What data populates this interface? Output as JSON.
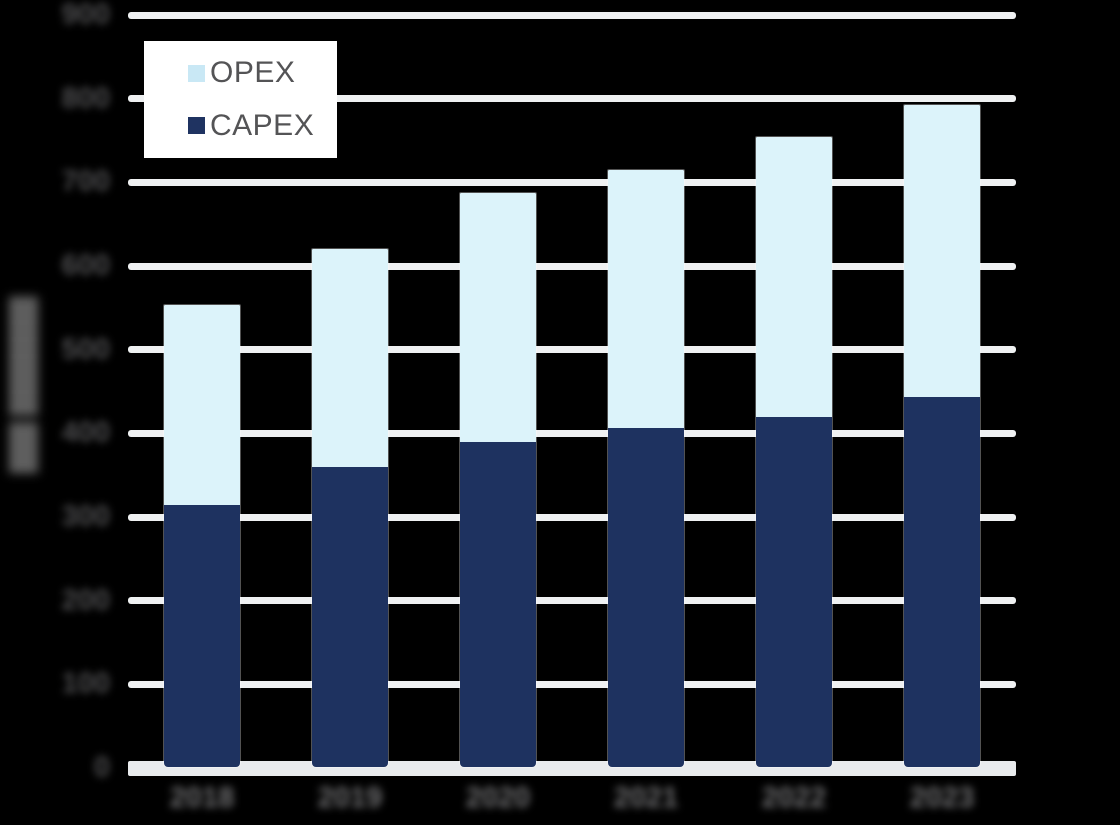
{
  "legend": {
    "items": [
      {
        "label": "OPEX",
        "swatch_color": "#c9e8f5",
        "icon": "square-swatch-icon"
      },
      {
        "label": "CAPEX",
        "swatch_color": "#1f3361",
        "icon": "square-swatch-icon"
      }
    ],
    "text_color": "#545456",
    "background": "#ffffff",
    "position": "top-left"
  },
  "chart_data": {
    "type": "bar",
    "stacked": true,
    "title": "",
    "categories": [
      "2018",
      "2019",
      "2020",
      "2021",
      "2022",
      "2023"
    ],
    "categories_blurred": true,
    "series": [
      {
        "name": "CAPEX",
        "color": "#1e3260",
        "values": [
          315,
          360,
          390,
          407,
          420,
          444
        ]
      },
      {
        "name": "OPEX",
        "color": "#dcf3fa",
        "values": [
          240,
          261,
          299,
          309,
          335,
          350
        ]
      }
    ],
    "stack_totals": [
      555,
      621,
      689,
      716,
      755,
      794
    ],
    "xlabel": "",
    "ylabel": "███ ███████",
    "ylabel_blurred": true,
    "y_ticks": [
      0,
      100,
      200,
      300,
      400,
      500,
      600,
      700,
      800,
      900
    ],
    "y_ticks_blurred": true,
    "ylim": [
      0,
      900
    ],
    "grid": "horizontal",
    "legend_position": "top-left"
  },
  "colors": {
    "background": "#000000",
    "gridline": "#eff1f2",
    "zero_axis_band": "#e9ebed",
    "y_tick_text": "#4f4f51",
    "x_tick_text": "#707072",
    "y_title_text": "#5e5e5e"
  }
}
